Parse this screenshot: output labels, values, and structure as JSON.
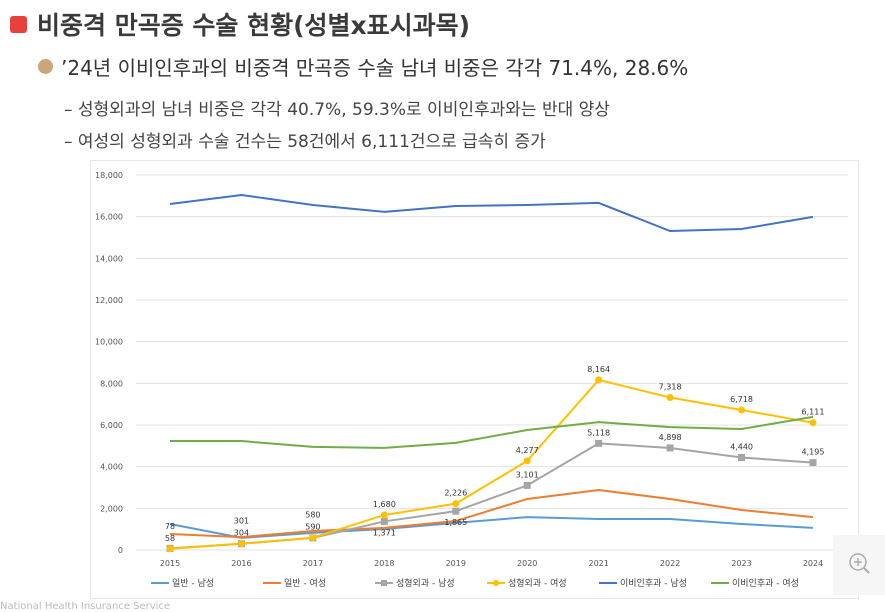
{
  "title": "비중격 만곡증 수술 현황(성별x표시과목)",
  "bullet": "’24년 이비인후과의 비중격 만곡증 수술 남녀 비중은 각각 71.4%, 28.6%",
  "sub1": "– 성형외과의 남녀 비중은 각각 40.7%, 59.3%로 이비인후과와는 반대 양상",
  "sub2": "– 여성의 성형외과 수술 건수는 58건에서 6,111건으로 급속히 증가",
  "footer": "National Health Insurance Service",
  "zoom_icon": "zoom-in-icon",
  "chart_data": {
    "type": "line",
    "categories": [
      "2015",
      "2016",
      "2017",
      "2018",
      "2019",
      "2020",
      "2021",
      "2022",
      "2023",
      "2024"
    ],
    "ylim": [
      0,
      18000
    ],
    "yticks": [
      "0",
      "2,000",
      "4,000",
      "6,000",
      "8,000",
      "10,000",
      "12,000",
      "14,000",
      "16,000",
      "18,000"
    ],
    "grid": true,
    "legend": "bottom",
    "series": [
      {
        "name": "일반 - 남성",
        "color": "#5b9bd5",
        "marker": "none",
        "values": [
          1250,
          580,
          820,
          1010,
          1300,
          1580,
          1490,
          1490,
          1250,
          1060
        ]
      },
      {
        "name": "일반 - 여성",
        "color": "#ed7d31",
        "marker": "none",
        "values": [
          770,
          620,
          910,
          1060,
          1390,
          2450,
          2880,
          2450,
          1920,
          1580
        ]
      },
      {
        "name": "성형외과 - 남성",
        "color": "#a5a5a5",
        "marker": "square",
        "values": [
          78,
          301,
          580,
          1371,
          1865,
          3101,
          5118,
          4898,
          4440,
          4195
        ],
        "labels": [
          "78",
          "301",
          "580",
          "1,371",
          "1,865",
          "3,101",
          "5,118",
          "4,898",
          "4,440",
          "4,195"
        ]
      },
      {
        "name": "성형외과 - 여성",
        "color": "#ffc000",
        "marker": "circle",
        "values": [
          58,
          304,
          590,
          1680,
          2226,
          4277,
          8164,
          7318,
          6718,
          6111
        ],
        "labels": [
          "58",
          "304",
          "590",
          "1,680",
          "2,226",
          "4,277",
          "8,164",
          "7,318",
          "6,718",
          "6,111"
        ]
      },
      {
        "name": "이비인후과 - 남성",
        "color": "#4472c4",
        "marker": "none",
        "values": [
          16610,
          17040,
          16560,
          16230,
          16510,
          16560,
          16660,
          15310,
          15410,
          15990
        ]
      },
      {
        "name": "이비인후과 - 여성",
        "color": "#70ad47",
        "marker": "none",
        "values": [
          5230,
          5230,
          4950,
          4900,
          5140,
          5760,
          6140,
          5900,
          5810,
          6390
        ]
      }
    ]
  }
}
